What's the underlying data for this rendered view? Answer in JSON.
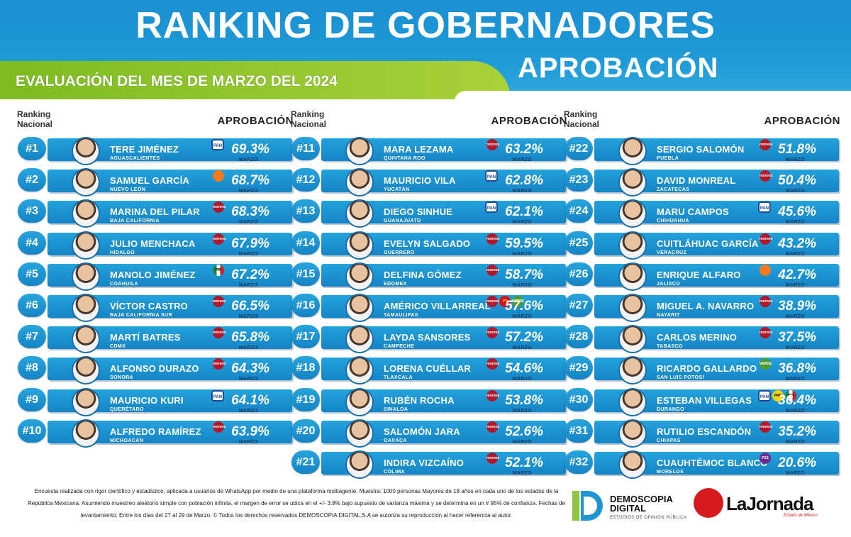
{
  "header": {
    "title": "RANKING DE GOBERNADORES",
    "subtitle": "APROBACIÓN",
    "evaluation": "EVALUACIÓN DEL MES DE MARZO DEL 2024"
  },
  "column_headers": {
    "rank_line1": "Ranking",
    "rank_line2": "Nacional",
    "approval": "APROBACIÓN"
  },
  "month_label": "MARZO",
  "colors": {
    "bar_blue": "#1f96d3",
    "green": "#8cc63f",
    "title_blue": "#1b8fd2"
  },
  "columns": [
    [
      {
        "rank": "#1",
        "name": "TERE JIMÉNEZ",
        "state": "AGUASCALIENTES",
        "pct": "69.3%",
        "parties": [
          "PAN"
        ]
      },
      {
        "rank": "#2",
        "name": "SAMUEL GARCÍA",
        "state": "NUEVO LEÓN",
        "pct": "68.7%",
        "parties": [
          "MC"
        ]
      },
      {
        "rank": "#3",
        "name": "MARINA DEL PILAR",
        "state": "BAJA CALIFORNIA",
        "pct": "68.3%",
        "parties": [
          "MORENA"
        ]
      },
      {
        "rank": "#4",
        "name": "JULIO MENCHACA",
        "state": "HIDALGO",
        "pct": "67.9%",
        "parties": [
          "MORENA"
        ]
      },
      {
        "rank": "#5",
        "name": "MANOLO JIMÉNEZ",
        "state": "COAHUILA",
        "pct": "67.2%",
        "parties": [
          "PRI"
        ]
      },
      {
        "rank": "#6",
        "name": "VÍCTOR CASTRO",
        "state": "BAJA CALIFORNIA SUR",
        "pct": "66.5%",
        "parties": [
          "MORENA"
        ]
      },
      {
        "rank": "#7",
        "name": "MARTÍ BATRES",
        "state": "CDMX",
        "pct": "65.8%",
        "parties": [
          "MORENA"
        ]
      },
      {
        "rank": "#8",
        "name": "ALFONSO DURAZO",
        "state": "SONORA",
        "pct": "64.3%",
        "parties": [
          "MORENA"
        ]
      },
      {
        "rank": "#9",
        "name": "MAURICIO KURI",
        "state": "QUERÉTARO",
        "pct": "64.1%",
        "parties": [
          "PAN"
        ]
      },
      {
        "rank": "#10",
        "name": "ALFREDO RAMÍREZ",
        "state": "MICHOACÁN",
        "pct": "63.9%",
        "parties": [
          "MORENA"
        ]
      }
    ],
    [
      {
        "rank": "#11",
        "name": "MARA LEZAMA",
        "state": "QUINTANA ROO",
        "pct": "63.2%",
        "parties": [
          "MORENA"
        ]
      },
      {
        "rank": "#12",
        "name": "MAURICIO VILA",
        "state": "YUCATÁN",
        "pct": "62.8%",
        "parties": [
          "PAN"
        ]
      },
      {
        "rank": "#13",
        "name": "DIEGO SINHUE",
        "state": "GUANAJUATO",
        "pct": "62.1%",
        "parties": [
          "PAN"
        ]
      },
      {
        "rank": "#14",
        "name": "EVELYN SALGADO",
        "state": "GUERRERO",
        "pct": "59.5%",
        "parties": [
          "MORENA"
        ]
      },
      {
        "rank": "#15",
        "name": "DELFINA GÓMEZ",
        "state": "EDOMEX",
        "pct": "58.7%",
        "parties": [
          "MORENA"
        ]
      },
      {
        "rank": "#16",
        "name": "AMÉRICO VILLARREAL",
        "state": "TAMAULIPAS",
        "pct": "57.6%",
        "parties": [
          "MORENA",
          "PT",
          "PVEM"
        ]
      },
      {
        "rank": "#17",
        "name": "LAYDA SANSORES",
        "state": "CAMPECHE",
        "pct": "57.2%",
        "parties": [
          "MORENA"
        ]
      },
      {
        "rank": "#18",
        "name": "LORENA CUÉLLAR",
        "state": "TLAXCALA",
        "pct": "54.6%",
        "parties": [
          "MORENA"
        ]
      },
      {
        "rank": "#19",
        "name": "RUBÉN ROCHA",
        "state": "SINALOA",
        "pct": "53.8%",
        "parties": [
          "MORENA"
        ]
      },
      {
        "rank": "#20",
        "name": "SALOMÓN JARA",
        "state": "OAXACA",
        "pct": "52.6%",
        "parties": [
          "MORENA"
        ]
      },
      {
        "rank": "#21",
        "name": "INDIRA VIZCAÍNO",
        "state": "COLIMA",
        "pct": "52.1%",
        "parties": [
          "MORENA"
        ]
      }
    ],
    [
      {
        "rank": "#22",
        "name": "SERGIO SALOMÓN",
        "state": "PUEBLA",
        "pct": "51.8%",
        "parties": [
          "MORENA"
        ]
      },
      {
        "rank": "#23",
        "name": "DAVID MONREAL",
        "state": "ZACATECAS",
        "pct": "50.4%",
        "parties": [
          "MORENA"
        ]
      },
      {
        "rank": "#24",
        "name": "MARU CAMPOS",
        "state": "CHIHUAHUA",
        "pct": "45.6%",
        "parties": [
          "PAN"
        ]
      },
      {
        "rank": "#25",
        "name": "CUITLÁHUAC GARCÍA",
        "state": "VERACRUZ",
        "pct": "43.2%",
        "parties": [
          "MORENA"
        ]
      },
      {
        "rank": "#26",
        "name": "ENRIQUE ALFARO",
        "state": "JALISCO",
        "pct": "42.7%",
        "parties": [
          "MC"
        ]
      },
      {
        "rank": "#27",
        "name": "MIGUEL A. NAVARRO",
        "state": "NAYARIT",
        "pct": "38.9%",
        "parties": [
          "MORENA"
        ]
      },
      {
        "rank": "#28",
        "name": "CARLOS MERINO",
        "state": "TABASCO",
        "pct": "37.5%",
        "parties": [
          "MORENA"
        ]
      },
      {
        "rank": "#29",
        "name": "RICARDO GALLARDO",
        "state": "SAN LUIS POTOSÍ",
        "pct": "36.8%",
        "parties": [
          "PVEM"
        ]
      },
      {
        "rank": "#30",
        "name": "ESTEBAN VILLEGAS",
        "state": "DURANGO",
        "pct": "36.4%",
        "parties": [
          "PAN",
          "PRD",
          "PRI"
        ]
      },
      {
        "rank": "#31",
        "name": "RUTILIO ESCANDÓN",
        "state": "CHIAPAS",
        "pct": "35.2%",
        "parties": [
          "MORENA"
        ]
      },
      {
        "rank": "#32",
        "name": "CUAUHTÉMOC BLANCO",
        "state": "MORELOS",
        "pct": "20.6%",
        "parties": [
          "FXS"
        ]
      }
    ]
  ],
  "party_logos": {
    "PAN": {
      "text": "PAN",
      "icon": "pan-logo-icon"
    },
    "MC": {
      "text": "",
      "icon": "mc-logo-icon"
    },
    "MORENA": {
      "text": "morena",
      "icon": "morena-logo-icon"
    },
    "PRI": {
      "text": "PRI",
      "icon": "pri-logo-icon"
    },
    "PT": {
      "text": "PT",
      "icon": "pt-logo-icon"
    },
    "PVEM": {
      "text": "VERDE",
      "icon": "pvem-logo-icon"
    },
    "PRD": {
      "text": "PRD",
      "icon": "prd-logo-icon"
    },
    "FXS": {
      "text": "FXS",
      "icon": "fxs-logo-icon"
    }
  },
  "footer": {
    "note": "Encuesta realizada con rigor científico y estadístico, aplicada a usuarios de WhatsApp por medio de una plataforma multiagente. Muestra: 1000 personas Mayores de 18 años en cada uno de los estados de la República Mexicana. Asumiendo muestreo aleatorio simple con población infinita, el margen de error se ubica en el +/- 3.8% bajo supuesto de varianza máxima y se determina en un # 95% de confianza. Fechas de levantamiento: Entre los días del 27 al 29 de Marzo. © Todos los derechos reservados DEMOSCOPIA DIGITAL,S.A se autoriza su reproducción al hacer referencia al autor.",
    "demoscopia_line1": "DEMOSCOPIA",
    "demoscopia_line2": "DIGITAL",
    "demoscopia_sub": "ESTUDIOS DE OPINIÓN PÚBLICA",
    "jornada": "LaJornada",
    "jornada_sub": "Estado de México"
  }
}
